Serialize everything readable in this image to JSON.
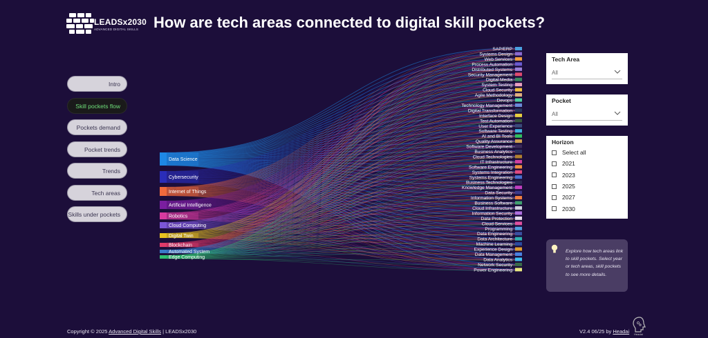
{
  "logo": {
    "name": "LEADSx2030",
    "tagline": "ADVANCED DIGITAL SKILLS"
  },
  "title": "How are tech areas connected to digital skill pockets?",
  "nav": [
    {
      "label": "Intro",
      "active": false
    },
    {
      "label": "Skill pockets flow",
      "active": true
    },
    {
      "label": "Pockets demand",
      "active": false
    },
    {
      "label": "Pocket trends",
      "active": false
    },
    {
      "label": "Trends",
      "active": false
    },
    {
      "label": "Tech areas",
      "active": false
    },
    {
      "label": "Skills under pockets",
      "active": false
    }
  ],
  "filters": {
    "tech_area": {
      "title": "Tech Area",
      "value": "All"
    },
    "pocket": {
      "title": "Pocket",
      "value": "All"
    },
    "horizon": {
      "title": "Horizon",
      "options": [
        "Select all",
        "2021",
        "2023",
        "2025",
        "2027",
        "2030"
      ]
    }
  },
  "info": "Explore how tech areas link to skill pockets. Select year or tech areas, skill pockets to see more details.",
  "footer": {
    "copyright_prefix": "Copyright © 2025 ",
    "copyright_link": "Advanced Digital Skills",
    "copyright_suffix": " | LEADSx2030",
    "version_prefix": "V2.4 06/25 by ",
    "version_link": "Headai",
    "brand": "Headai"
  },
  "sources": [
    {
      "label": "Data Science",
      "color": "#1e88e5"
    },
    {
      "label": "Cybersecurity",
      "color": "#2a2db8"
    },
    {
      "label": "Internet of Things",
      "color": "#f06a3c"
    },
    {
      "label": "Artificial Intelligence",
      "color": "#7a1ea0"
    },
    {
      "label": "Robotics",
      "color": "#d83aa0"
    },
    {
      "label": "Cloud Computing",
      "color": "#7b56d8"
    },
    {
      "label": "Digital Twin",
      "color": "#e8c020"
    },
    {
      "label": "Blockchain",
      "color": "#e03a6a"
    },
    {
      "label": "Automated System",
      "color": "#3a7ac8"
    },
    {
      "label": "Edge Computing",
      "color": "#30c070"
    }
  ],
  "targets": [
    {
      "label": "SAP/ERP",
      "color": "#4aa0e0"
    },
    {
      "label": "Systems Design",
      "color": "#8a6ad0"
    },
    {
      "label": "Web Services",
      "color": "#f0a040"
    },
    {
      "label": "Process Automation",
      "color": "#6a5ad0"
    },
    {
      "label": "Distributed Systems",
      "color": "#9a80d8"
    },
    {
      "label": "Security Management",
      "color": "#e04a70"
    },
    {
      "label": "Digital Media",
      "color": "#3a8a60"
    },
    {
      "label": "System Testing",
      "color": "#e8a0c0"
    },
    {
      "label": "Cloud Security",
      "color": "#f0c040"
    },
    {
      "label": "Agile Methodology",
      "color": "#e0b080"
    },
    {
      "label": "Devops",
      "color": "#50d0a0"
    },
    {
      "label": "Technology Management",
      "color": "#6a8ad8"
    },
    {
      "label": "Digital Transformation",
      "color": "#2a3a60"
    },
    {
      "label": "Interface Design",
      "color": "#e8d040"
    },
    {
      "label": "Test Automation",
      "color": "#3a5a40"
    },
    {
      "label": "User Experience",
      "color": "#3a4a7a"
    },
    {
      "label": "Software Testing",
      "color": "#40b0e0"
    },
    {
      "label": "AI and BI Tools",
      "color": "#30c060"
    },
    {
      "label": "Quality Assurance",
      "color": "#d0a050"
    },
    {
      "label": "Software Development",
      "color": "#3a2a5a"
    },
    {
      "label": "Business Analytics",
      "color": "#2a3060"
    },
    {
      "label": "Cloud Technologies",
      "color": "#b08030"
    },
    {
      "label": "IT Infrastructure",
      "color": "#d040a0"
    },
    {
      "label": "Software Engineering",
      "color": "#f09040"
    },
    {
      "label": "Systems Integration",
      "color": "#e04a80"
    },
    {
      "label": "Systems Engineering",
      "color": "#4a70d0"
    },
    {
      "label": "Business Technologies",
      "color": "#2a2a50"
    },
    {
      "label": "Knowledge Management",
      "color": "#c040c0"
    },
    {
      "label": "Data Security",
      "color": "#3a3a8a"
    },
    {
      "label": "Information Systems",
      "color": "#f08040"
    },
    {
      "label": "Business Software",
      "color": "#40a070"
    },
    {
      "label": "Cloud Infrastructure",
      "color": "#d0d0e0"
    },
    {
      "label": "Information Security",
      "color": "#b070e0"
    },
    {
      "label": "Data Protection",
      "color": "#e8e0f0"
    },
    {
      "label": "Cloud Services",
      "color": "#e050a0"
    },
    {
      "label": "Programming",
      "color": "#50a0e0"
    },
    {
      "label": "Data Engineering",
      "color": "#3a50a0"
    },
    {
      "label": "Data Architecture",
      "color": "#30b0b0"
    },
    {
      "label": "Machine Learning",
      "color": "#2a4aa0"
    },
    {
      "label": "Experience Design",
      "color": "#e0a030"
    },
    {
      "label": "Data Management",
      "color": "#4a80e0"
    },
    {
      "label": "Data Analytics",
      "color": "#40c0f0"
    },
    {
      "label": "Network Security",
      "color": "#3a6a4a"
    },
    {
      "label": "Power Engineering",
      "color": "#e8e880"
    }
  ]
}
